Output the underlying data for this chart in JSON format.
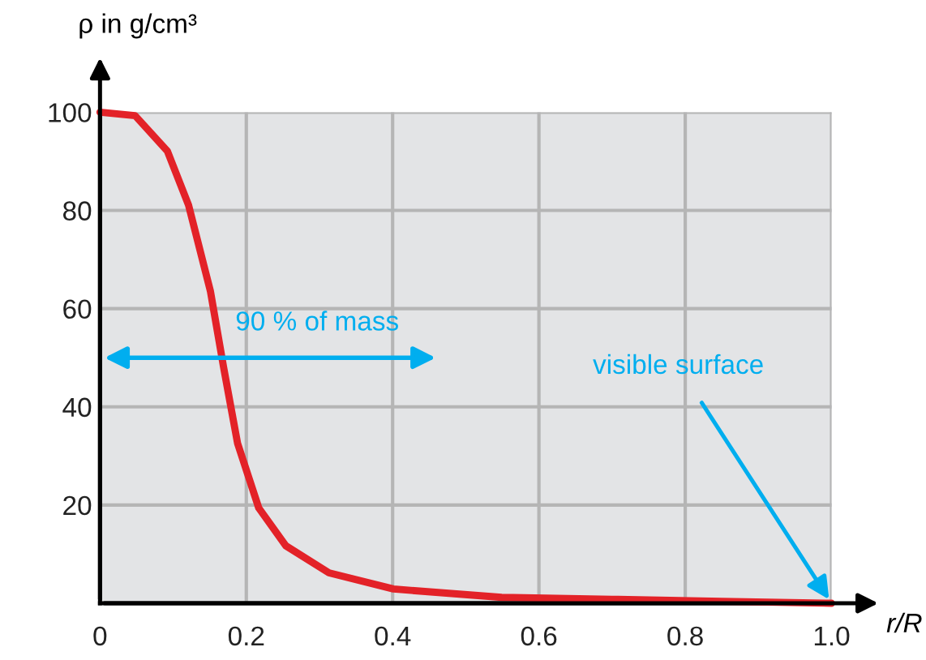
{
  "chart_data": {
    "type": "line",
    "xlabel": "r/R",
    "ylabel": "ρ in g/cm³",
    "x": [
      0,
      0.048,
      0.092,
      0.121,
      0.151,
      0.169,
      0.188,
      0.217,
      0.254,
      0.313,
      0.401,
      0.549,
      0.7,
      0.85,
      1.0
    ],
    "series": [
      {
        "color": "#e32228",
        "values": [
          100,
          99.3,
          92.1,
          81.1,
          63.5,
          48,
          32.6,
          19.4,
          11.7,
          6.2,
          2.9,
          1.2,
          0.8,
          0.4,
          0
        ]
      }
    ],
    "xlim": [
      0,
      1.0
    ],
    "ylim": [
      0,
      100
    ],
    "xticks": [
      0,
      0.2,
      0.4,
      0.6,
      0.8,
      {
        "value": 1.0,
        "label": "1.0"
      }
    ],
    "yticks": [
      20,
      40,
      60,
      80,
      100
    ],
    "grid": true,
    "marker": "none",
    "line_style": "solid",
    "annotations": [
      "90 % of mass",
      {
        "text": "visible surface",
        "x": 1.0,
        "y": 0
      }
    ]
  }
}
